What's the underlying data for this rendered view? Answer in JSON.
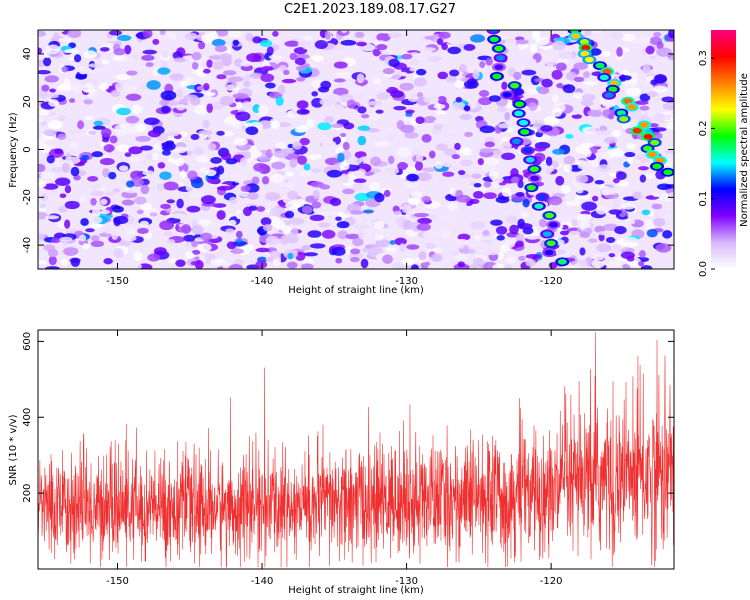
{
  "title": "C2E1.2023.189.08.17.G27",
  "chart_data": [
    {
      "type": "heatmap",
      "xlabel": "Height of straight line (km)",
      "ylabel": "Frequency (Hz)",
      "xlim": [
        -155.5,
        -111.5
      ],
      "ylim": [
        -50,
        50
      ],
      "xticks": [
        -150,
        -140,
        -130,
        -120
      ],
      "xtick_labels": [
        "-150",
        "-140",
        "-130",
        "-120"
      ],
      "yticks": [
        -40,
        -20,
        0,
        20,
        40
      ],
      "ytick_labels": [
        "-40",
        "-20",
        "0",
        "20",
        "40"
      ],
      "colorbar": {
        "label": "Normalized spectral amplitude",
        "range": [
          0,
          0.34
        ],
        "ticks": [
          0.0,
          0.1,
          0.2,
          0.3
        ],
        "tick_labels": [
          "0.0",
          "0.1",
          "0.2",
          "0.3"
        ],
        "colormap": [
          "#ffffff",
          "#d9b8ff",
          "#8000ff",
          "#0000ff",
          "#00ffff",
          "#00ff00",
          "#ffff00",
          "#ff8000",
          "#ff0000",
          "#ff0080"
        ]
      },
      "ridges": [
        {
          "x0": -124.0,
          "y0": 50,
          "x1": -119.5,
          "y1": -47,
          "amplitude": 0.16
        },
        {
          "x0": -118.5,
          "y0": 50,
          "x1": -111.5,
          "y1": -12,
          "amplitude": 0.24
        }
      ],
      "grid": false
    },
    {
      "type": "line",
      "xlabel": "Height of straight line (km)",
      "ylabel": "SNR (10 * v/v)",
      "xlim": [
        -155.5,
        -111.5
      ],
      "ylim": [
        0,
        630
      ],
      "xticks": [
        -150,
        -140,
        -130,
        -120
      ],
      "xtick_labels": [
        "-150",
        "-140",
        "-130",
        "-120"
      ],
      "yticks": [
        200,
        400,
        600
      ],
      "ytick_labels": [
        "200",
        "400",
        "600"
      ],
      "color": "#f03030",
      "trend": [
        {
          "x": -155.5,
          "mean": 165
        },
        {
          "x": -150,
          "mean": 160
        },
        {
          "x": -145,
          "mean": 160
        },
        {
          "x": -140,
          "mean": 165
        },
        {
          "x": -135,
          "mean": 170
        },
        {
          "x": -130,
          "mean": 180
        },
        {
          "x": -125,
          "mean": 185
        },
        {
          "x": -120,
          "mean": 200
        },
        {
          "x": -116,
          "mean": 240
        },
        {
          "x": -111.5,
          "mean": 260
        }
      ],
      "grid": false
    }
  ]
}
